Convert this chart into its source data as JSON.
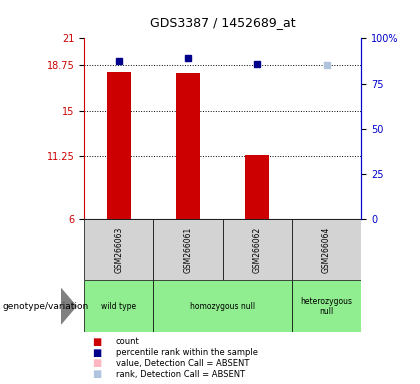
{
  "title": "GDS3387 / 1452689_at",
  "samples": [
    "GSM266063",
    "GSM266061",
    "GSM266062",
    "GSM266064"
  ],
  "bar_values": [
    18.2,
    18.15,
    11.3,
    6.0
  ],
  "bar_colors": [
    "#cc0000",
    "#cc0000",
    "#cc0000",
    "#ffb6c1"
  ],
  "bar_absent": [
    false,
    false,
    false,
    true
  ],
  "percentile_values": [
    19.1,
    19.4,
    18.9,
    18.75
  ],
  "percentile_absent": [
    false,
    false,
    false,
    true
  ],
  "y_min": 6,
  "y_max": 21,
  "y_ticks": [
    6,
    11.25,
    15,
    18.75,
    21
  ],
  "y_tick_labels": [
    "6",
    "11.25",
    "15",
    "18.75",
    "21"
  ],
  "y2_ticks": [
    0,
    25,
    50,
    75,
    100
  ],
  "y2_tick_labels": [
    "0",
    "25",
    "50",
    "75",
    "100%"
  ],
  "dotted_lines": [
    11.25,
    15,
    18.75
  ],
  "left_axis_color": "#cc0000",
  "right_axis_color": "#0000cc",
  "bar_width": 0.35,
  "genotype_groups": [
    {
      "label": "wild type",
      "start": 0,
      "end": 0
    },
    {
      "label": "homozygous null",
      "start": 1,
      "end": 2
    },
    {
      "label": "heterozygous\nnull",
      "start": 3,
      "end": 3
    }
  ],
  "legend_items": [
    {
      "color": "#cc0000",
      "label": "count"
    },
    {
      "color": "#00008b",
      "label": "percentile rank within the sample"
    },
    {
      "color": "#ffb6c1",
      "label": "value, Detection Call = ABSENT"
    },
    {
      "color": "#b0c4de",
      "label": "rank, Detection Call = ABSENT"
    }
  ]
}
